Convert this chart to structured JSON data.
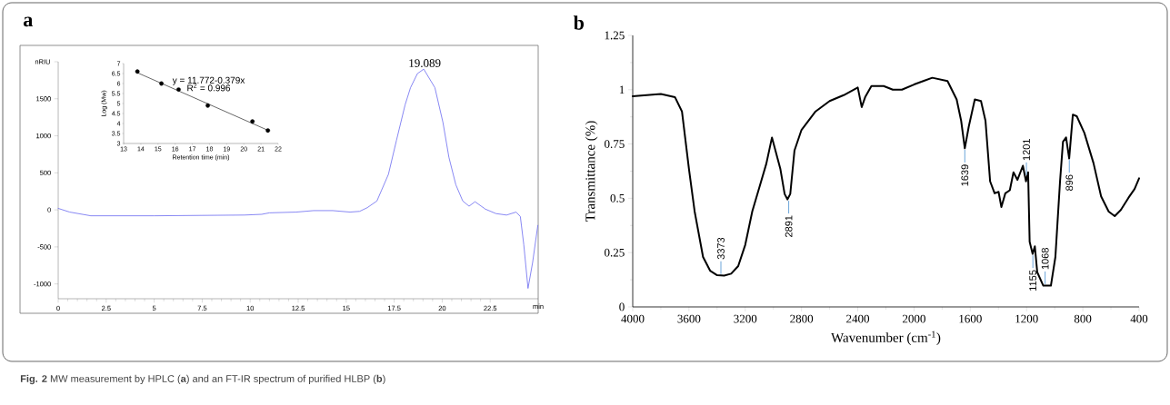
{
  "chart_data": [
    {
      "type": "line",
      "title": "a",
      "ylabel": "nRIU",
      "xlabel": "min",
      "xlim": [
        0,
        25
      ],
      "ylim": [
        -1200,
        2000
      ],
      "xticks": [
        0,
        2.5,
        5,
        7.5,
        10,
        12.5,
        15,
        17.5,
        20,
        22.5
      ],
      "yticks": [
        -1000,
        -500,
        0,
        500,
        1000,
        1500,
        {
          "value": 2000,
          "label": null
        }
      ],
      "series": [
        {
          "color": "#6a6af0",
          "x": [
            0,
            0.6,
            1.7,
            5,
            9.7,
            10.6,
            11,
            12.4,
            13.3,
            14.3,
            15.2,
            15.7,
            16.1,
            16.6,
            17.2,
            17.62,
            18.07,
            18.35,
            18.71,
            19.04,
            19.62,
            20.04,
            20.35,
            20.71,
            21.07,
            21.4,
            21.71,
            22.25,
            22.8,
            23.35,
            23.85,
            24.07,
            24.25,
            24.47,
            24.71,
            24.98
          ],
          "values": [
            20,
            -30,
            -80,
            -80,
            -70,
            -60,
            -40,
            -30,
            -10,
            -10,
            -30,
            -20,
            30,
            120,
            480,
            940,
            1420,
            1650,
            1840,
            1900,
            1650,
            1180,
            710,
            340,
            120,
            50,
            110,
            10,
            -50,
            -70,
            -30,
            -90,
            -470,
            -1060,
            -710,
            -210
          ]
        }
      ],
      "annotations": [
        {
          "text": "19.089",
          "x": 19.089,
          "y": 1900
        },
        "**Fig. 2** MW measurement by HPLC (**a**) and an FT-IR spectrum of purified HLBP (**b**)"
      ]
    },
    {
      "type": "scatter",
      "xlabel": "Retention time (min)",
      "ylabel": "Log (Mw)",
      "xlim": [
        13,
        22
      ],
      "ylim": [
        3,
        7
      ],
      "xticks": [
        13,
        14,
        15,
        16,
        17,
        18,
        19,
        20,
        21,
        22
      ],
      "yticks": [
        3,
        3.5,
        4,
        4.5,
        5,
        5.5,
        6,
        6.5,
        7
      ],
      "series": [
        {
          "type": "scatter",
          "marker": "circle",
          "color": "#000000",
          "x": [
            13.8,
            15.2,
            16.2,
            17.9,
            20.5,
            21.4
          ],
          "values": [
            6.6,
            6.0,
            5.7,
            4.9,
            4.1,
            3.65
          ]
        },
        {
          "type": "line",
          "marker": "none",
          "color": "#000000",
          "x": [
            13.8,
            21.4
          ],
          "values": [
            6.54,
            3.66
          ]
        }
      ],
      "annotations": [
        "y = 11.772-0.379x",
        "R$^{2}$ = 0.996"
      ]
    },
    {
      "type": "line",
      "title": "b",
      "xlabel": "Wavenumber (cm$^{-1}$)",
      "ylabel": "Transmittance (%)",
      "xlim": [
        4000,
        400
      ],
      "ylim": [
        0,
        1.25
      ],
      "xticks": [
        4000,
        3600,
        3200,
        2800,
        2400,
        2000,
        1600,
        1200,
        800,
        400
      ],
      "yticks": [
        0,
        0.25,
        0.5,
        0.75,
        1,
        1.25
      ],
      "series": [
        {
          "color": "#000000",
          "x": [
            4000,
            3800,
            3700,
            3650,
            3600,
            3560,
            3500,
            3450,
            3400,
            3350,
            3300,
            3250,
            3200,
            3150,
            3100,
            3050,
            3010,
            2950,
            2920,
            2900,
            2880,
            2850,
            2800,
            2700,
            2600,
            2500,
            2400,
            2372,
            2346,
            2303,
            2216,
            2151,
            2086,
            2000,
            1870,
            1762,
            1697,
            1665,
            1639,
            1611,
            1568,
            1524,
            1492,
            1459,
            1427,
            1399,
            1379,
            1351,
            1319,
            1293,
            1265,
            1226,
            1204,
            1189,
            1178,
            1157,
            1141,
            1124,
            1081,
            1027,
            995,
            962,
            941,
            919,
            897,
            871,
            843,
            789,
            724,
            670,
            616,
            573,
            530,
            476,
            432,
            400
          ],
          "values": [
            0.97,
            0.98,
            0.966,
            0.9,
            0.634,
            0.44,
            0.23,
            0.167,
            0.146,
            0.144,
            0.153,
            0.188,
            0.286,
            0.44,
            0.55,
            0.66,
            0.78,
            0.634,
            0.52,
            0.495,
            0.52,
            0.72,
            0.815,
            0.9,
            0.948,
            0.975,
            1.01,
            0.92,
            0.968,
            1.017,
            1.017,
            1.0,
            1.0,
            1.024,
            1.055,
            1.04,
            0.955,
            0.857,
            0.73,
            0.83,
            0.955,
            0.948,
            0.857,
            0.578,
            0.523,
            0.53,
            0.46,
            0.523,
            0.537,
            0.62,
            0.585,
            0.65,
            0.578,
            0.62,
            0.3,
            0.244,
            0.279,
            0.16,
            0.098,
            0.098,
            0.23,
            0.578,
            0.76,
            0.78,
            0.683,
            0.885,
            0.878,
            0.801,
            0.662,
            0.509,
            0.439,
            0.418,
            0.446,
            0.502,
            0.543,
            0.592
          ]
        }
      ],
      "annotations": [
        {
          "text": "3373",
          "x": 3373,
          "y": 0.145
        },
        {
          "text": "2891",
          "x": 2891,
          "y": 0.495
        },
        {
          "text": "1639",
          "x": 1639,
          "y": 0.73
        },
        {
          "text": "1201",
          "x": 1201,
          "y": 0.6
        },
        {
          "text": "1155",
          "x": 1155,
          "y": 0.244
        },
        {
          "text": "1068",
          "x": 1068,
          "y": 0.098
        },
        {
          "text": "896",
          "x": 896,
          "y": 0.683
        }
      ]
    }
  ]
}
